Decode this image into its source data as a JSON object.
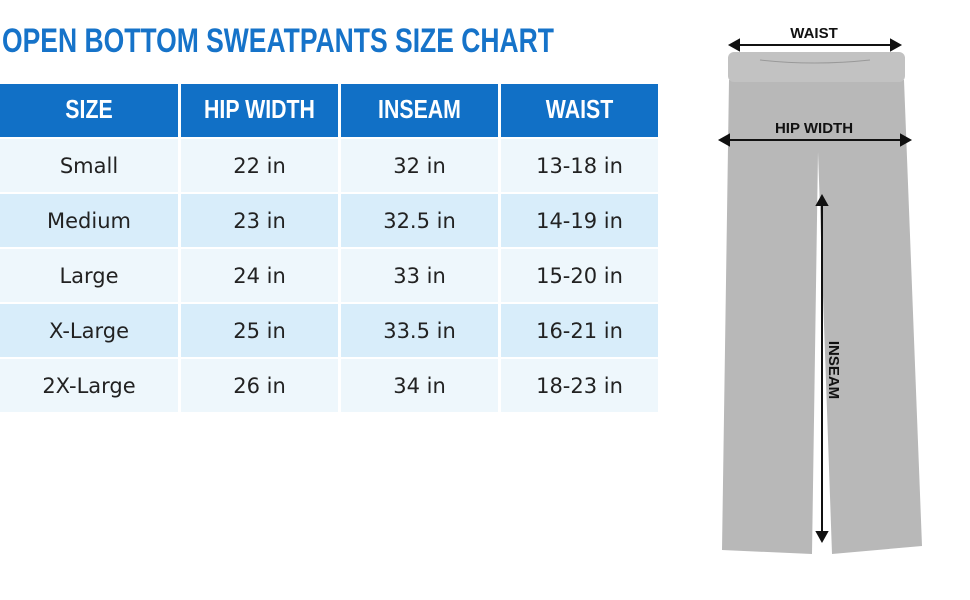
{
  "header": {
    "title": "OPEN BOTTOM SWEATPANTS SIZE CHART"
  },
  "table": {
    "columns": [
      "SIZE",
      "HIP WIDTH",
      "INSEAM",
      "WAIST"
    ],
    "rows": [
      [
        "Small",
        "22 in",
        "32 in",
        "13-18 in"
      ],
      [
        "Medium",
        "23 in",
        "32.5 in",
        "14-19 in"
      ],
      [
        "Large",
        "24 in",
        "33 in",
        "15-20 in"
      ],
      [
        "X-Large",
        "25 in",
        "33.5 in",
        "16-21 in"
      ],
      [
        "2X-Large",
        "26 in",
        "34 in",
        "18-23 in"
      ]
    ]
  },
  "diagram": {
    "labels": {
      "waist": "WAIST",
      "hip_width": "HIP WIDTH",
      "inseam": "INSEAM"
    }
  }
}
